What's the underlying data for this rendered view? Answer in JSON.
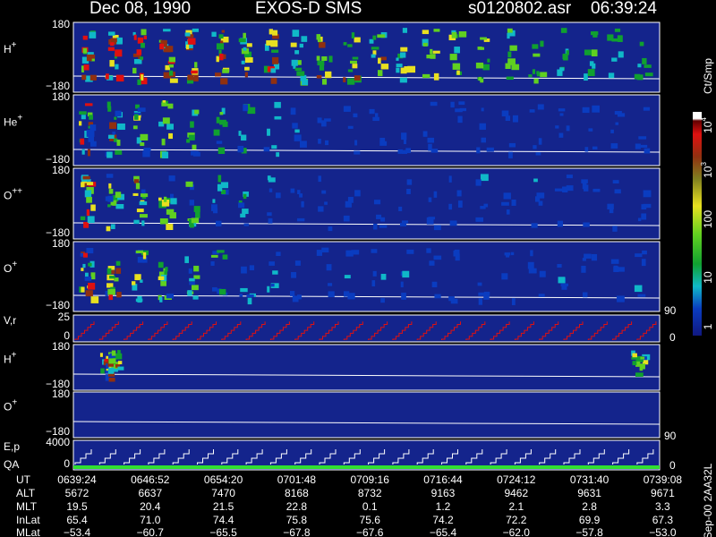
{
  "header": {
    "date": "Dec 08, 1990",
    "instrument": "EXOS-D SMS",
    "file": "s0120802.asr",
    "time": "06:39:24"
  },
  "panels": [
    {
      "label": "H",
      "sup": "+",
      "top": "180",
      "bottom": "−180"
    },
    {
      "label": "He",
      "sup": "+",
      "top": "180",
      "bottom": "−180"
    },
    {
      "label": "O",
      "sup": "++",
      "top": "180",
      "bottom": "−180"
    },
    {
      "label": "O",
      "sup": "+",
      "top": "180",
      "bottom": "−180"
    },
    {
      "label": "V,r",
      "top": "25",
      "bottom": "0",
      "right_top": "90",
      "right_bottom": "0"
    },
    {
      "label": "H",
      "sup": "+",
      "top": "180",
      "bottom": "−180"
    },
    {
      "label": "O",
      "sup": "+",
      "top": "180",
      "bottom": "−180"
    },
    {
      "label": "E,p",
      "sub_label": "QA",
      "top": "4000",
      "bottom": "0",
      "right_top": "90",
      "right_bottom": "0"
    }
  ],
  "colorbar": {
    "title": "Ct/Smp",
    "ticks": [
      {
        "base": "10",
        "exp": "4"
      },
      {
        "base": "10",
        "exp": "3"
      },
      "100",
      "10",
      "1"
    ]
  },
  "footer": "Sep-00 2AA32L",
  "table": {
    "labels": [
      "UT",
      "ALT",
      "MLT",
      "InLat",
      "MLat"
    ],
    "rows": [
      [
        "0639:24",
        "0646:52",
        "0654:20",
        "0701:48",
        "0709:16",
        "0716:44",
        "0724:12",
        "0731:40",
        "0739:08"
      ],
      [
        "5672",
        "6637",
        "7470",
        "8168",
        "8732",
        "9163",
        "9462",
        "9631",
        "9671"
      ],
      [
        "19.5",
        "20.4",
        "21.5",
        "22.8",
        "0.1",
        "1.2",
        "2.1",
        "2.8",
        "3.3"
      ],
      [
        "65.4",
        "71.0",
        "74.4",
        "75.8",
        "75.6",
        "74.2",
        "72.2",
        "69.9",
        "67.3"
      ],
      [
        "−53.4",
        "−60.7",
        "−65.5",
        "−67.8",
        "−67.6",
        "−65.4",
        "−62.0",
        "−57.8",
        "−53.0"
      ]
    ]
  }
}
